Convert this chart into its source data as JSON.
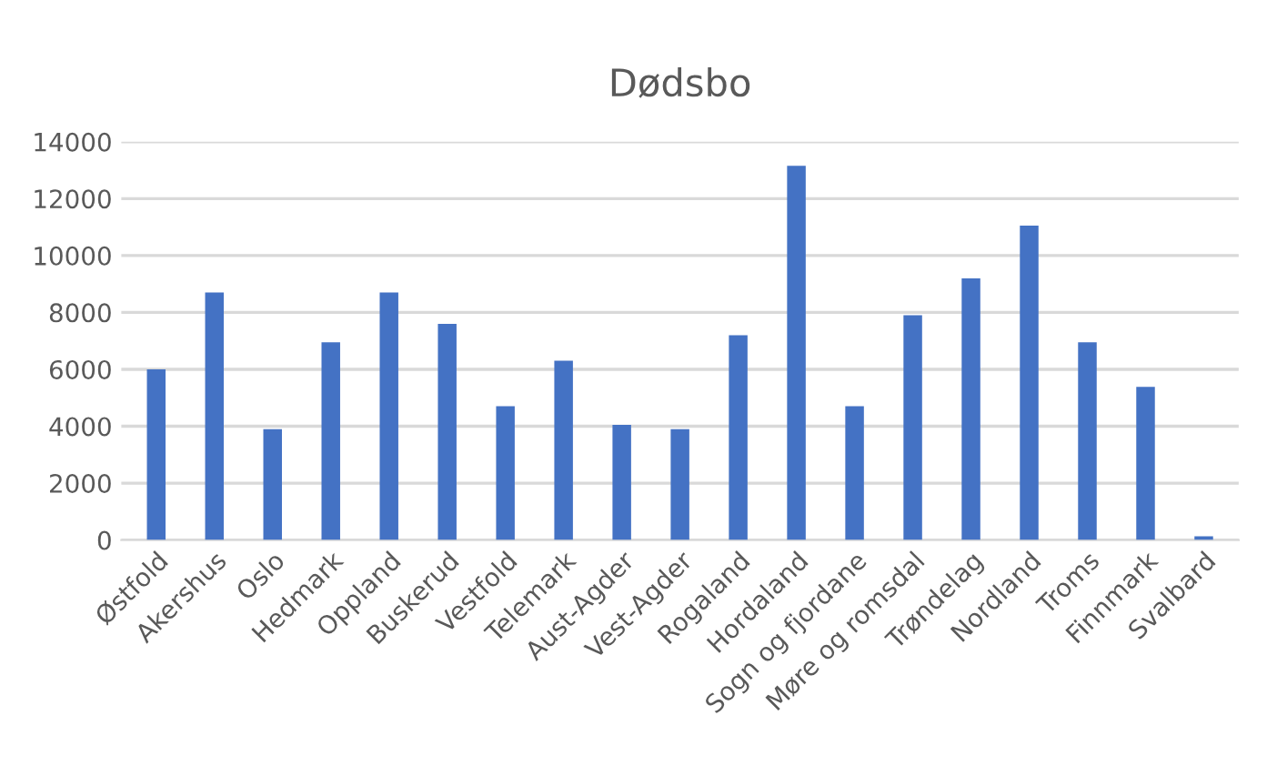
{
  "chart_data": {
    "type": "bar",
    "title": "Dødsbo",
    "categories": [
      "Østfold",
      "Akershus",
      "Oslo",
      "Hedmark",
      "Oppland",
      "Buskerud",
      "Vestfold",
      "Telemark",
      "Aust-Agder",
      "Vest-Agder",
      "Rogaland",
      "Hordaland",
      "Sogn og fjordane",
      "Møre og romsdal",
      "Trøndelag",
      "Nordland",
      "Troms",
      "Finnmark",
      "Svalbard"
    ],
    "values": [
      6000,
      8700,
      3900,
      6950,
      8700,
      7600,
      4700,
      6300,
      4050,
      3900,
      7200,
      13150,
      4700,
      7900,
      9200,
      11050,
      6950,
      5380,
      130
    ],
    "color": "#4472c4",
    "ylim": [
      0,
      14000
    ],
    "yticks": [
      0,
      2000,
      4000,
      6000,
      8000,
      10000,
      12000,
      14000
    ],
    "grid": "y",
    "legend": false
  }
}
